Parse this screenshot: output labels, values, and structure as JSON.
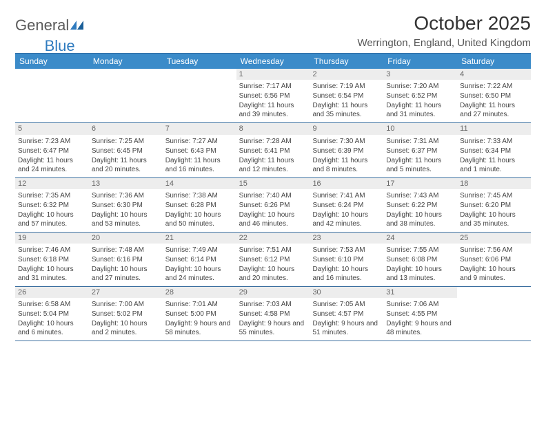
{
  "logo": {
    "text1": "General",
    "text2": "Blue"
  },
  "title": "October 2025",
  "location": "Werrington, England, United Kingdom",
  "colors": {
    "header_bg": "#3b8bc9",
    "header_text": "#ffffff",
    "daynum_bg": "#ededed",
    "divider": "#2f6fa8",
    "logo_blue": "#2f7bbf"
  },
  "day_names": [
    "Sunday",
    "Monday",
    "Tuesday",
    "Wednesday",
    "Thursday",
    "Friday",
    "Saturday"
  ],
  "weeks": [
    [
      {
        "n": "",
        "sr": "",
        "ss": "",
        "dl": ""
      },
      {
        "n": "",
        "sr": "",
        "ss": "",
        "dl": ""
      },
      {
        "n": "",
        "sr": "",
        "ss": "",
        "dl": ""
      },
      {
        "n": "1",
        "sr": "Sunrise: 7:17 AM",
        "ss": "Sunset: 6:56 PM",
        "dl": "Daylight: 11 hours and 39 minutes."
      },
      {
        "n": "2",
        "sr": "Sunrise: 7:19 AM",
        "ss": "Sunset: 6:54 PM",
        "dl": "Daylight: 11 hours and 35 minutes."
      },
      {
        "n": "3",
        "sr": "Sunrise: 7:20 AM",
        "ss": "Sunset: 6:52 PM",
        "dl": "Daylight: 11 hours and 31 minutes."
      },
      {
        "n": "4",
        "sr": "Sunrise: 7:22 AM",
        "ss": "Sunset: 6:50 PM",
        "dl": "Daylight: 11 hours and 27 minutes."
      }
    ],
    [
      {
        "n": "5",
        "sr": "Sunrise: 7:23 AM",
        "ss": "Sunset: 6:47 PM",
        "dl": "Daylight: 11 hours and 24 minutes."
      },
      {
        "n": "6",
        "sr": "Sunrise: 7:25 AM",
        "ss": "Sunset: 6:45 PM",
        "dl": "Daylight: 11 hours and 20 minutes."
      },
      {
        "n": "7",
        "sr": "Sunrise: 7:27 AM",
        "ss": "Sunset: 6:43 PM",
        "dl": "Daylight: 11 hours and 16 minutes."
      },
      {
        "n": "8",
        "sr": "Sunrise: 7:28 AM",
        "ss": "Sunset: 6:41 PM",
        "dl": "Daylight: 11 hours and 12 minutes."
      },
      {
        "n": "9",
        "sr": "Sunrise: 7:30 AM",
        "ss": "Sunset: 6:39 PM",
        "dl": "Daylight: 11 hours and 8 minutes."
      },
      {
        "n": "10",
        "sr": "Sunrise: 7:31 AM",
        "ss": "Sunset: 6:37 PM",
        "dl": "Daylight: 11 hours and 5 minutes."
      },
      {
        "n": "11",
        "sr": "Sunrise: 7:33 AM",
        "ss": "Sunset: 6:34 PM",
        "dl": "Daylight: 11 hours and 1 minute."
      }
    ],
    [
      {
        "n": "12",
        "sr": "Sunrise: 7:35 AM",
        "ss": "Sunset: 6:32 PM",
        "dl": "Daylight: 10 hours and 57 minutes."
      },
      {
        "n": "13",
        "sr": "Sunrise: 7:36 AM",
        "ss": "Sunset: 6:30 PM",
        "dl": "Daylight: 10 hours and 53 minutes."
      },
      {
        "n": "14",
        "sr": "Sunrise: 7:38 AM",
        "ss": "Sunset: 6:28 PM",
        "dl": "Daylight: 10 hours and 50 minutes."
      },
      {
        "n": "15",
        "sr": "Sunrise: 7:40 AM",
        "ss": "Sunset: 6:26 PM",
        "dl": "Daylight: 10 hours and 46 minutes."
      },
      {
        "n": "16",
        "sr": "Sunrise: 7:41 AM",
        "ss": "Sunset: 6:24 PM",
        "dl": "Daylight: 10 hours and 42 minutes."
      },
      {
        "n": "17",
        "sr": "Sunrise: 7:43 AM",
        "ss": "Sunset: 6:22 PM",
        "dl": "Daylight: 10 hours and 38 minutes."
      },
      {
        "n": "18",
        "sr": "Sunrise: 7:45 AM",
        "ss": "Sunset: 6:20 PM",
        "dl": "Daylight: 10 hours and 35 minutes."
      }
    ],
    [
      {
        "n": "19",
        "sr": "Sunrise: 7:46 AM",
        "ss": "Sunset: 6:18 PM",
        "dl": "Daylight: 10 hours and 31 minutes."
      },
      {
        "n": "20",
        "sr": "Sunrise: 7:48 AM",
        "ss": "Sunset: 6:16 PM",
        "dl": "Daylight: 10 hours and 27 minutes."
      },
      {
        "n": "21",
        "sr": "Sunrise: 7:49 AM",
        "ss": "Sunset: 6:14 PM",
        "dl": "Daylight: 10 hours and 24 minutes."
      },
      {
        "n": "22",
        "sr": "Sunrise: 7:51 AM",
        "ss": "Sunset: 6:12 PM",
        "dl": "Daylight: 10 hours and 20 minutes."
      },
      {
        "n": "23",
        "sr": "Sunrise: 7:53 AM",
        "ss": "Sunset: 6:10 PM",
        "dl": "Daylight: 10 hours and 16 minutes."
      },
      {
        "n": "24",
        "sr": "Sunrise: 7:55 AM",
        "ss": "Sunset: 6:08 PM",
        "dl": "Daylight: 10 hours and 13 minutes."
      },
      {
        "n": "25",
        "sr": "Sunrise: 7:56 AM",
        "ss": "Sunset: 6:06 PM",
        "dl": "Daylight: 10 hours and 9 minutes."
      }
    ],
    [
      {
        "n": "26",
        "sr": "Sunrise: 6:58 AM",
        "ss": "Sunset: 5:04 PM",
        "dl": "Daylight: 10 hours and 6 minutes."
      },
      {
        "n": "27",
        "sr": "Sunrise: 7:00 AM",
        "ss": "Sunset: 5:02 PM",
        "dl": "Daylight: 10 hours and 2 minutes."
      },
      {
        "n": "28",
        "sr": "Sunrise: 7:01 AM",
        "ss": "Sunset: 5:00 PM",
        "dl": "Daylight: 9 hours and 58 minutes."
      },
      {
        "n": "29",
        "sr": "Sunrise: 7:03 AM",
        "ss": "Sunset: 4:58 PM",
        "dl": "Daylight: 9 hours and 55 minutes."
      },
      {
        "n": "30",
        "sr": "Sunrise: 7:05 AM",
        "ss": "Sunset: 4:57 PM",
        "dl": "Daylight: 9 hours and 51 minutes."
      },
      {
        "n": "31",
        "sr": "Sunrise: 7:06 AM",
        "ss": "Sunset: 4:55 PM",
        "dl": "Daylight: 9 hours and 48 minutes."
      },
      {
        "n": "",
        "sr": "",
        "ss": "",
        "dl": ""
      }
    ]
  ]
}
